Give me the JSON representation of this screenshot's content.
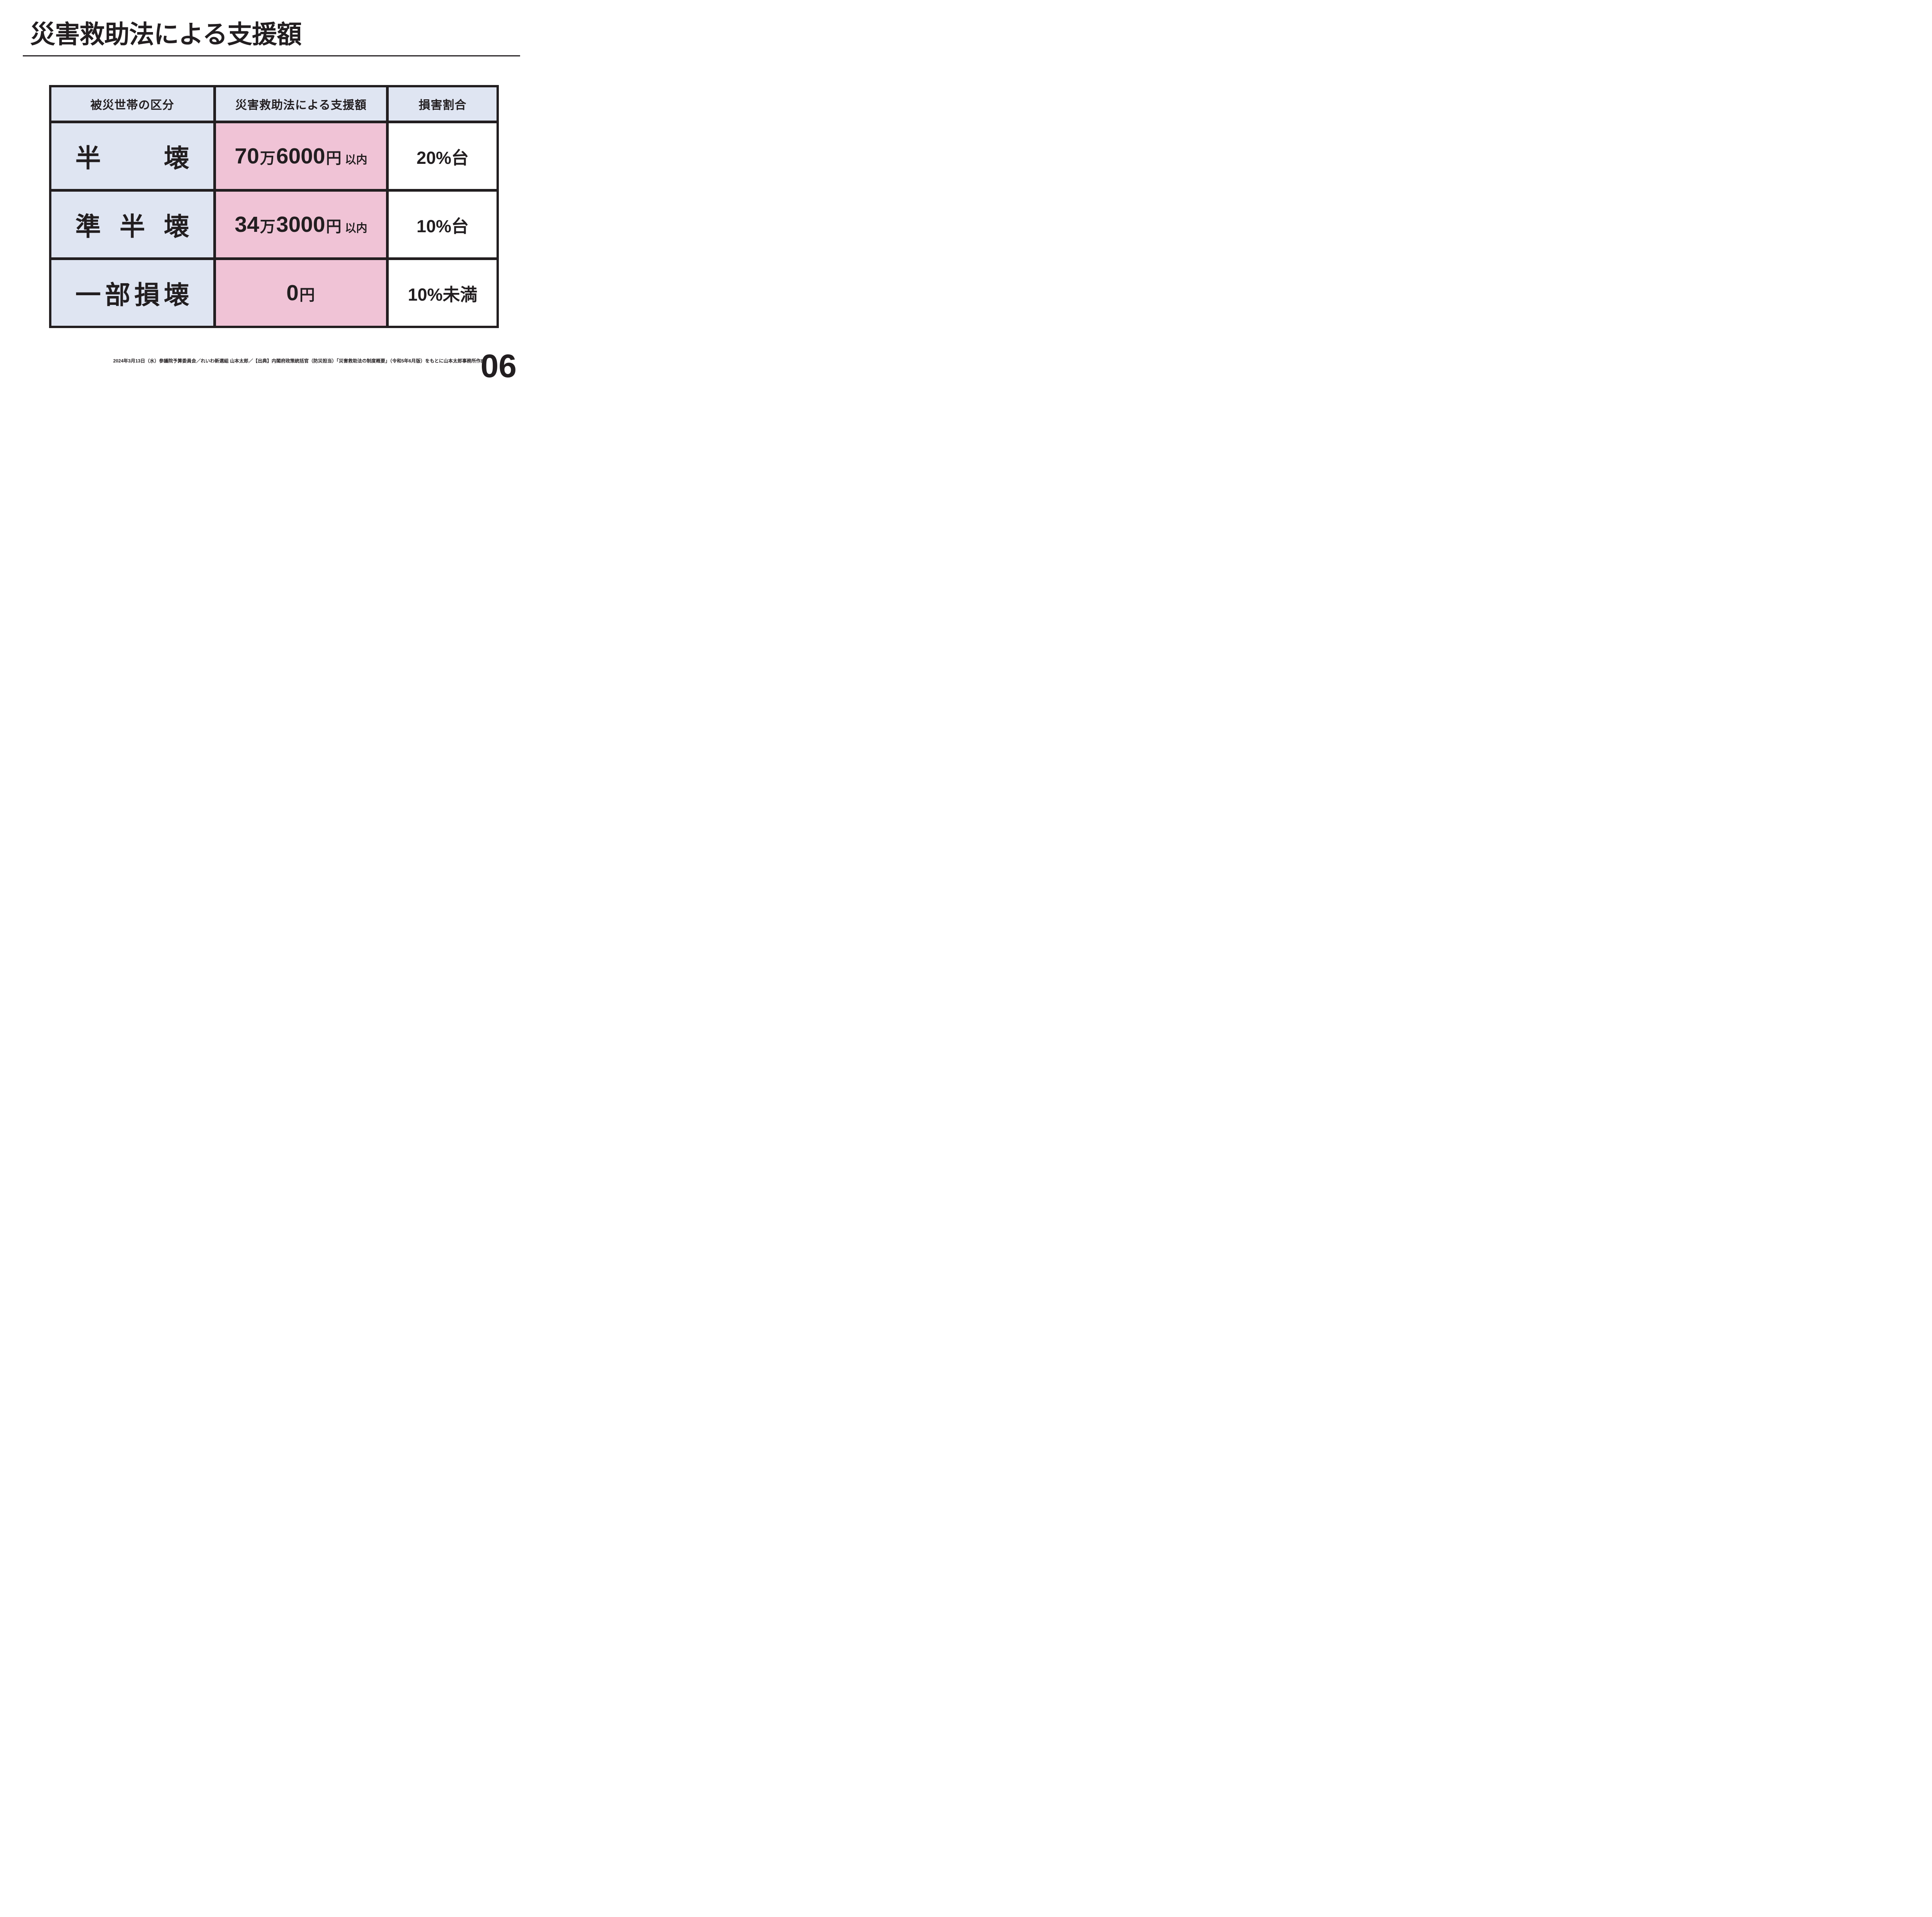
{
  "slide": {
    "title": "災害救助法による支援額",
    "footer": "2024年3月13日（水）参議院予算委員会／れいわ新選組 山本太郎／【出典】内閣府政策統括官（防災担当）「災害救助法の制度概要」（令和5年6月版）をもとに山本太郎事務所作成",
    "page_number": "06"
  },
  "colors": {
    "ink": "#221e20",
    "header_bg": "#dfe5f2",
    "category_bg": "#dfe5f2",
    "amount_bg": "#f0c3d6",
    "ratio_bg": "#ffffff"
  },
  "table": {
    "headers": [
      "被災世帯の区分",
      "災害救助法による支援額",
      "損害割合"
    ],
    "rows": [
      {
        "category": "半壊",
        "chars": [
          "半",
          "壊"
        ],
        "amount": {
          "big1": "70",
          "unit1": "万",
          "big2": "6000",
          "unit2": "円",
          "suffix": "以内"
        },
        "ratio": "20%台"
      },
      {
        "category": "準半壊",
        "chars": [
          "準",
          "半",
          "壊"
        ],
        "amount": {
          "big1": "34",
          "unit1": "万",
          "big2": "3000",
          "unit2": "円",
          "suffix": "以内"
        },
        "ratio": "10%台"
      },
      {
        "category": "一部損壊",
        "chars": [
          "一",
          "部",
          "損",
          "壊"
        ],
        "amount": {
          "big1": "0",
          "unit1": "円",
          "big2": "",
          "unit2": "",
          "suffix": ""
        },
        "ratio": "10%未満"
      }
    ]
  }
}
